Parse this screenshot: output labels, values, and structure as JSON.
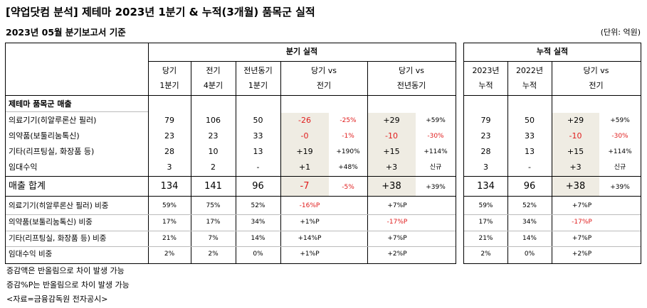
{
  "title": "[약업닷컴 분석] 제테마 2023년 1분기 & 누적(3개월) 품목군 실적",
  "subtitle": "2023년 05월 분기보고서 기준",
  "unit": "(단위: 억원)",
  "quarter_header": "분기 실적",
  "cum_header": "누적 실적",
  "q_cols": [
    [
      "당기",
      "1분기"
    ],
    [
      "전기",
      "4분기"
    ],
    [
      "전년동기",
      "1분기"
    ],
    [
      "당기 vs",
      "전기"
    ],
    [
      "당기 vs",
      "전년동기"
    ]
  ],
  "c_cols": [
    [
      "2023년",
      "누적"
    ],
    [
      "2022년",
      "누적"
    ],
    [
      "당기 vs",
      "전기"
    ]
  ],
  "section_label": "제테마 품목군 매출",
  "rows": [
    {
      "label": "의료기기(히알루론산 필러)",
      "q1": "79",
      "q4": "106",
      "py": "50",
      "vs_prev": "-26",
      "vs_prev_pct": "-25%",
      "vs_py": "+29",
      "vs_py_pct": "+59%",
      "cum23": "79",
      "cum22": "50",
      "cum_vs": "+29",
      "cum_vs_pct": "+59%"
    },
    {
      "label": "의약품(보툴리눔톡신)",
      "q1": "23",
      "q4": "23",
      "py": "33",
      "vs_prev": "-0",
      "vs_prev_pct": "-1%",
      "vs_py": "-10",
      "vs_py_pct": "-30%",
      "cum23": "23",
      "cum22": "33",
      "cum_vs": "-10",
      "cum_vs_pct": "-30%"
    },
    {
      "label": "기타(리프팅실, 화장품 등)",
      "q1": "28",
      "q4": "10",
      "py": "13",
      "vs_prev": "+19",
      "vs_prev_pct": "+190%",
      "vs_py": "+15",
      "vs_py_pct": "+114%",
      "cum23": "28",
      "cum22": "13",
      "cum_vs": "+15",
      "cum_vs_pct": "+114%"
    },
    {
      "label": "임대수익",
      "q1": "3",
      "q4": "2",
      "py": "-",
      "vs_prev": "+1",
      "vs_prev_pct": "+48%",
      "vs_py": "+3",
      "vs_py_pct": "신규",
      "cum23": "3",
      "cum22": "-",
      "cum_vs": "+3",
      "cum_vs_pct": "신규"
    }
  ],
  "total": {
    "label": "매출 합계",
    "q1": "134",
    "q4": "141",
    "py": "96",
    "vs_prev": "-7",
    "vs_prev_pct": "-5%",
    "vs_py": "+38",
    "vs_py_pct": "+39%",
    "cum23": "134",
    "cum22": "96",
    "cum_vs": "+38",
    "cum_vs_pct": "+39%"
  },
  "ratios": [
    {
      "label": "의료기기(히알루론산 필러) 비중",
      "q1": "59%",
      "q4": "75%",
      "py": "52%",
      "vs_prev": "-16%P",
      "vs_py": "+7%P",
      "cum23": "59%",
      "cum22": "52%",
      "cum_vs": "+7%P"
    },
    {
      "label": "의약품(보툴리눔톡신) 비중",
      "q1": "17%",
      "q4": "17%",
      "py": "34%",
      "vs_prev": "+1%P",
      "vs_py": "-17%P",
      "cum23": "17%",
      "cum22": "34%",
      "cum_vs": "-17%P"
    },
    {
      "label": "기타(리프팅실, 화장품 등) 비중",
      "q1": "21%",
      "q4": "7%",
      "py": "14%",
      "vs_prev": "+14%P",
      "vs_py": "+7%P",
      "cum23": "21%",
      "cum22": "14%",
      "cum_vs": "+7%P"
    },
    {
      "label": "임대수익 비중",
      "q1": "2%",
      "q4": "2%",
      "py": "0%",
      "vs_prev": "+1%P",
      "vs_py": "+2%P",
      "cum23": "2%",
      "cum22": "0%",
      "cum_vs": "+2%P"
    }
  ],
  "notes": [
    "증감액은 반올림으로 차이 발생 가능",
    "증감%P는 반올림으로 차이 발생 가능",
    "<자료=금융감독원 전자공시>"
  ],
  "colors": {
    "negative": "#e01c1c",
    "shade": "#efece3"
  }
}
